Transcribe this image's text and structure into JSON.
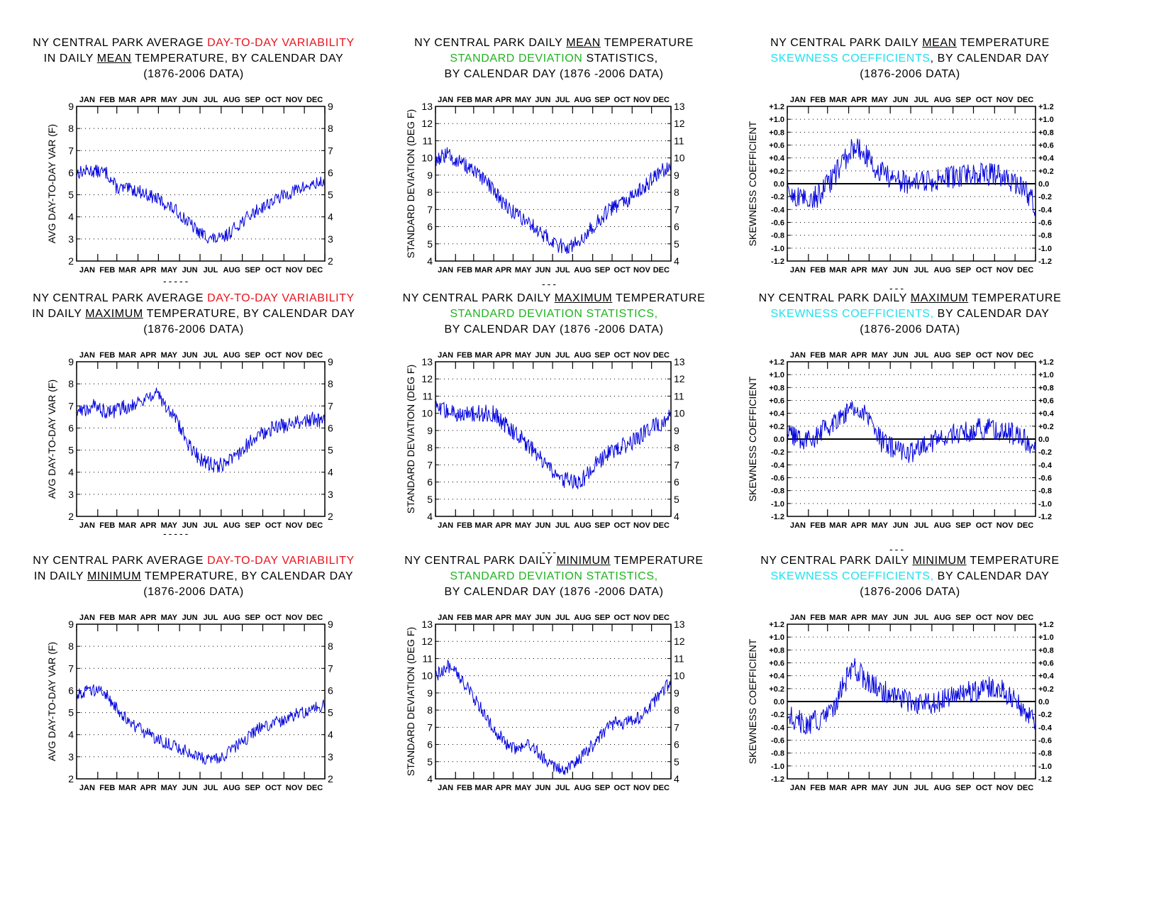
{
  "months": [
    "JAN",
    "FEB",
    "MAR",
    "APR",
    "MAY",
    "JUN",
    "JUL",
    "AUG",
    "SEP",
    "OCT",
    "NOV",
    "DEC"
  ],
  "separators": [
    "-----",
    "---",
    "---",
    "-----",
    "---",
    "---"
  ],
  "colors": {
    "line": "#0000dd",
    "red": "#e8141e",
    "green": "#1fb31f",
    "cyan": "#22e0ee"
  },
  "panels": [
    {
      "id": "var-mean",
      "title": [
        [
          {
            "t": "NY CENTRAL PARK AVERAGE "
          },
          {
            "t": "DAY-TO-DAY VARIABILITY",
            "c": "red"
          }
        ],
        [
          {
            "t": "IN DAILY "
          },
          {
            "t": "MEAN",
            "u": true
          },
          {
            "t": "  TEMPERATURE, BY CALENDAR DAY"
          }
        ],
        [
          {
            "t": "(1876-2006 DATA)"
          }
        ]
      ]
    },
    {
      "id": "sd-mean",
      "title": [
        [
          {
            "t": "NY CENTRAL PARK DAILY "
          },
          {
            "t": "MEAN",
            "u": true
          },
          {
            "t": " TEMPERATURE"
          }
        ],
        [
          {
            "t": "STANDARD DEVIATION",
            "c": "green"
          },
          {
            "t": " STATISTICS,"
          }
        ],
        [
          {
            "t": "BY CALENDAR DAY (1876 -2006 DATA)"
          }
        ]
      ]
    },
    {
      "id": "sk-mean",
      "title": [
        [
          {
            "t": "NY CENTRAL PARK DAILY "
          },
          {
            "t": "MEAN",
            "u": true
          },
          {
            "t": " TEMPERATURE"
          }
        ],
        [
          {
            "t": "SKEWNESS COEFFICIENTS",
            "c": "cyan"
          },
          {
            "t": ", BY CALENDAR DAY"
          }
        ],
        [
          {
            "t": "(1876-2006 DATA)"
          }
        ]
      ]
    },
    {
      "id": "var-max",
      "title": [
        [
          {
            "t": "NY CENTRAL PARK AVERAGE "
          },
          {
            "t": "DAY-TO-DAY VARIABILITY",
            "c": "red"
          }
        ],
        [
          {
            "t": "IN DAILY "
          },
          {
            "t": "MAXIMUM",
            "u": true
          },
          {
            "t": " TEMPERATURE, BY CALENDAR DAY"
          }
        ],
        [
          {
            "t": "(1876-2006 DATA)"
          }
        ]
      ]
    },
    {
      "id": "sd-max",
      "title": [
        [
          {
            "t": "NY CENTRAL PARK DAILY "
          },
          {
            "t": "MAXIMUM",
            "u": true
          },
          {
            "t": " TEMPERATURE"
          }
        ],
        [
          {
            "t": "STANDARD DEVIATION STATISTICS,",
            "c": "green"
          }
        ],
        [
          {
            "t": "BY CALENDAR DAY (1876 -2006 DATA)"
          }
        ]
      ]
    },
    {
      "id": "sk-max",
      "title": [
        [
          {
            "t": "NY CENTRAL PARK DAILY "
          },
          {
            "t": "MAXIMUM",
            "u": true
          },
          {
            "t": " TEMPERATURE"
          }
        ],
        [
          {
            "t": "SKEWNESS COEFFICIENTS,",
            "c": "cyan"
          },
          {
            "t": " BY CALENDAR DAY"
          }
        ],
        [
          {
            "t": "(1876-2006 DATA)"
          }
        ]
      ]
    },
    {
      "id": "var-min",
      "title": [
        [
          {
            "t": "NY CENTRAL PARK AVERAGE "
          },
          {
            "t": "DAY-TO-DAY VARIABILITY",
            "c": "red"
          }
        ],
        [
          {
            "t": "IN DAILY "
          },
          {
            "t": "MINIMUM",
            "u": true
          },
          {
            "t": " TEMPERATURE, BY CALENDAR DAY"
          }
        ],
        [
          {
            "t": "(1876-2006 DATA)"
          }
        ]
      ]
    },
    {
      "id": "sd-min",
      "title": [
        [
          {
            "t": "NY CENTRAL PARK DAILY  "
          },
          {
            "t": "MINIMUM",
            "u": true
          },
          {
            "t": " TEMPERATURE"
          }
        ],
        [
          {
            "t": "STANDARD DEVIATION STATISTICS,",
            "c": "green"
          }
        ],
        [
          {
            "t": "BY CALENDAR DAY (1876 -2006 DATA)"
          }
        ]
      ]
    },
    {
      "id": "sk-min",
      "title": [
        [
          {
            "t": "NY CENTRAL PARK DAILY "
          },
          {
            "t": "MINIMUM",
            "u": true
          },
          {
            "t": "  TEMPERATURE"
          }
        ],
        [
          {
            "t": "SKEWNESS COEFFICIENTS,",
            "c": "cyan"
          },
          {
            "t": " BY CALENDAR DAY"
          }
        ],
        [
          {
            "t": "(1876-2006 DATA)"
          }
        ]
      ]
    }
  ],
  "chart_data": [
    {
      "id": "var-mean",
      "type": "line",
      "ylabel": "AVG DAY-TO-DAY VAR (F)",
      "ylim": [
        2,
        9
      ],
      "yticks": [
        2,
        3,
        4,
        5,
        6,
        7,
        8,
        9
      ],
      "xlabel": "",
      "x": "calendar day (1-365)",
      "series_profile": [
        [
          1,
          6.0
        ],
        [
          20,
          6.1
        ],
        [
          45,
          6.0
        ],
        [
          60,
          5.3
        ],
        [
          90,
          5.2
        ],
        [
          120,
          4.8
        ],
        [
          150,
          4.2
        ],
        [
          180,
          3.3
        ],
        [
          200,
          3.0
        ],
        [
          215,
          3.0
        ],
        [
          240,
          3.7
        ],
        [
          270,
          4.4
        ],
        [
          300,
          4.9
        ],
        [
          330,
          5.3
        ],
        [
          365,
          5.6
        ]
      ],
      "noise": 0.3,
      "grid": "dotted",
      "legend": "none"
    },
    {
      "id": "sd-mean",
      "type": "line",
      "ylabel": "STANDARD DEVIATION (DEG F)",
      "ylim": [
        4,
        13
      ],
      "yticks": [
        4,
        5,
        6,
        7,
        8,
        9,
        10,
        11,
        12,
        13
      ],
      "xlabel": "",
      "series_profile": [
        [
          1,
          9.9
        ],
        [
          20,
          10.2
        ],
        [
          45,
          9.6
        ],
        [
          60,
          9.2
        ],
        [
          90,
          8.2
        ],
        [
          105,
          7.4
        ],
        [
          120,
          6.9
        ],
        [
          140,
          6.4
        ],
        [
          165,
          5.6
        ],
        [
          190,
          4.9
        ],
        [
          210,
          4.8
        ],
        [
          225,
          5.3
        ],
        [
          245,
          6.0
        ],
        [
          270,
          7.0
        ],
        [
          295,
          7.4
        ],
        [
          320,
          8.2
        ],
        [
          345,
          9.1
        ],
        [
          365,
          9.6
        ]
      ],
      "noise": 0.45,
      "grid": "dotted",
      "legend": "none"
    },
    {
      "id": "sk-mean",
      "type": "line",
      "ylabel": "SKEWNESS COEFFICIENT",
      "ylim": [
        -1.2,
        1.2
      ],
      "yticks": [
        -1.2,
        -1.0,
        -0.8,
        -0.6,
        -0.4,
        -0.2,
        0.0,
        0.2,
        0.4,
        0.6,
        0.8,
        1.0,
        1.2
      ],
      "ytick_labels": [
        "-1.2",
        "-1.0",
        "-0.8",
        "-0.6",
        "-0.4",
        "-0.2",
        "0.0",
        "+0.2",
        "+0.4",
        "+0.6",
        "+0.8",
        "+1.0",
        "+1.2"
      ],
      "zero_line": true,
      "series_profile": [
        [
          1,
          -0.1
        ],
        [
          20,
          -0.25
        ],
        [
          45,
          -0.2
        ],
        [
          65,
          0.05
        ],
        [
          85,
          0.35
        ],
        [
          100,
          0.6
        ],
        [
          115,
          0.45
        ],
        [
          130,
          0.25
        ],
        [
          150,
          0.1
        ],
        [
          180,
          0.0
        ],
        [
          210,
          0.05
        ],
        [
          240,
          0.1
        ],
        [
          270,
          0.15
        ],
        [
          300,
          0.15
        ],
        [
          330,
          0.05
        ],
        [
          350,
          -0.1
        ],
        [
          365,
          -0.35
        ]
      ],
      "noise": 0.18,
      "grid": "dotted",
      "legend": "none"
    },
    {
      "id": "var-max",
      "type": "line",
      "ylabel": "AVG DAY-TO-DAY VAR (F)",
      "ylim": [
        2,
        9
      ],
      "yticks": [
        2,
        3,
        4,
        5,
        6,
        7,
        8,
        9
      ],
      "series_profile": [
        [
          1,
          6.7
        ],
        [
          25,
          7.0
        ],
        [
          50,
          6.7
        ],
        [
          75,
          7.0
        ],
        [
          100,
          7.3
        ],
        [
          115,
          7.6
        ],
        [
          130,
          7.1
        ],
        [
          150,
          6.2
        ],
        [
          170,
          5.0
        ],
        [
          190,
          4.4
        ],
        [
          210,
          4.3
        ],
        [
          230,
          4.6
        ],
        [
          260,
          5.5
        ],
        [
          290,
          6.0
        ],
        [
          320,
          6.2
        ],
        [
          345,
          6.4
        ],
        [
          365,
          6.3
        ]
      ],
      "noise": 0.35,
      "grid": "dotted",
      "legend": "none"
    },
    {
      "id": "sd-max",
      "type": "line",
      "ylabel": "STANDARD DEVIATION (DEG F)",
      "ylim": [
        4,
        13
      ],
      "yticks": [
        4,
        5,
        6,
        7,
        8,
        9,
        10,
        11,
        12,
        13
      ],
      "series_profile": [
        [
          1,
          10.3
        ],
        [
          30,
          10.0
        ],
        [
          60,
          10.0
        ],
        [
          90,
          10.0
        ],
        [
          110,
          9.3
        ],
        [
          130,
          8.7
        ],
        [
          150,
          7.9
        ],
        [
          170,
          7.0
        ],
        [
          190,
          6.3
        ],
        [
          210,
          6.0
        ],
        [
          225,
          6.0
        ],
        [
          245,
          6.9
        ],
        [
          270,
          7.8
        ],
        [
          300,
          8.2
        ],
        [
          330,
          9.0
        ],
        [
          365,
          9.8
        ]
      ],
      "noise": 0.5,
      "grid": "dotted",
      "legend": "none"
    },
    {
      "id": "sk-max",
      "type": "line",
      "ylabel": "SKEWNESS COEFFICIENT",
      "ylim": [
        -1.2,
        1.2
      ],
      "yticks": [
        -1.2,
        -1.0,
        -0.8,
        -0.6,
        -0.4,
        -0.2,
        0.0,
        0.2,
        0.4,
        0.6,
        0.8,
        1.0,
        1.2
      ],
      "ytick_labels": [
        "-1.2",
        "-1.0",
        "-0.8",
        "-0.6",
        "-0.4",
        "-0.2",
        "0.0",
        "+0.2",
        "+0.4",
        "+0.6",
        "+0.8",
        "+1.0",
        "+1.2"
      ],
      "zero_line": true,
      "series_profile": [
        [
          1,
          0.05
        ],
        [
          20,
          0.0
        ],
        [
          45,
          0.05
        ],
        [
          70,
          0.3
        ],
        [
          90,
          0.45
        ],
        [
          105,
          0.5
        ],
        [
          120,
          0.3
        ],
        [
          140,
          -0.05
        ],
        [
          160,
          -0.15
        ],
        [
          180,
          -0.25
        ],
        [
          200,
          -0.1
        ],
        [
          220,
          0.0
        ],
        [
          250,
          0.1
        ],
        [
          280,
          0.15
        ],
        [
          310,
          0.15
        ],
        [
          340,
          0.05
        ],
        [
          365,
          -0.1
        ]
      ],
      "noise": 0.18,
      "grid": "dotted",
      "legend": "none"
    },
    {
      "id": "var-min",
      "type": "line",
      "ylabel": "AVG DAY-TO-DAY VAR (F)",
      "ylim": [
        2,
        9
      ],
      "yticks": [
        2,
        3,
        4,
        5,
        6,
        7,
        8,
        9
      ],
      "series_profile": [
        [
          1,
          5.8
        ],
        [
          20,
          6.1
        ],
        [
          45,
          5.8
        ],
        [
          65,
          5.0
        ],
        [
          90,
          4.3
        ],
        [
          120,
          3.8
        ],
        [
          150,
          3.4
        ],
        [
          180,
          3.0
        ],
        [
          200,
          2.8
        ],
        [
          215,
          3.0
        ],
        [
          240,
          3.6
        ],
        [
          270,
          4.3
        ],
        [
          300,
          4.6
        ],
        [
          330,
          5.0
        ],
        [
          365,
          5.3
        ]
      ],
      "noise": 0.3,
      "grid": "dotted",
      "legend": "none"
    },
    {
      "id": "sd-min",
      "type": "line",
      "ylabel": "STANDARD DEVIATION (DEG F)",
      "ylim": [
        4,
        13
      ],
      "yticks": [
        4,
        5,
        6,
        7,
        8,
        9,
        10,
        11,
        12,
        13
      ],
      "series_profile": [
        [
          1,
          10.0
        ],
        [
          20,
          10.6
        ],
        [
          45,
          9.6
        ],
        [
          65,
          8.5
        ],
        [
          90,
          7.0
        ],
        [
          110,
          6.0
        ],
        [
          125,
          5.8
        ],
        [
          145,
          5.9
        ],
        [
          170,
          5.2
        ],
        [
          190,
          4.6
        ],
        [
          205,
          4.5
        ],
        [
          225,
          5.2
        ],
        [
          245,
          6.0
        ],
        [
          270,
          7.2
        ],
        [
          295,
          7.3
        ],
        [
          320,
          7.6
        ],
        [
          345,
          8.8
        ],
        [
          365,
          9.6
        ]
      ],
      "noise": 0.4,
      "grid": "dotted",
      "legend": "none"
    },
    {
      "id": "sk-min",
      "type": "line",
      "ylabel": "SKEWNESS COEFFICIENT",
      "ylim": [
        -1.2,
        1.2
      ],
      "yticks": [
        -1.2,
        -1.0,
        -0.8,
        -0.6,
        -0.4,
        -0.2,
        0.0,
        0.2,
        0.4,
        0.6,
        0.8,
        1.0,
        1.2
      ],
      "ytick_labels": [
        "-1.2",
        "-1.0",
        "-0.8",
        "-0.6",
        "-0.4",
        "-0.2",
        "0.0",
        "+0.2",
        "+0.4",
        "+0.6",
        "+0.8",
        "+1.0",
        "+1.2"
      ],
      "zero_line": true,
      "series_profile": [
        [
          1,
          -0.2
        ],
        [
          25,
          -0.35
        ],
        [
          50,
          -0.3
        ],
        [
          70,
          -0.1
        ],
        [
          85,
          0.3
        ],
        [
          100,
          0.5
        ],
        [
          115,
          0.35
        ],
        [
          135,
          0.2
        ],
        [
          155,
          0.1
        ],
        [
          180,
          0.0
        ],
        [
          210,
          -0.05
        ],
        [
          240,
          0.05
        ],
        [
          270,
          0.15
        ],
        [
          300,
          0.25
        ],
        [
          320,
          0.15
        ],
        [
          340,
          -0.05
        ],
        [
          365,
          -0.35
        ]
      ],
      "noise": 0.18,
      "grid": "dotted",
      "legend": "none"
    }
  ]
}
